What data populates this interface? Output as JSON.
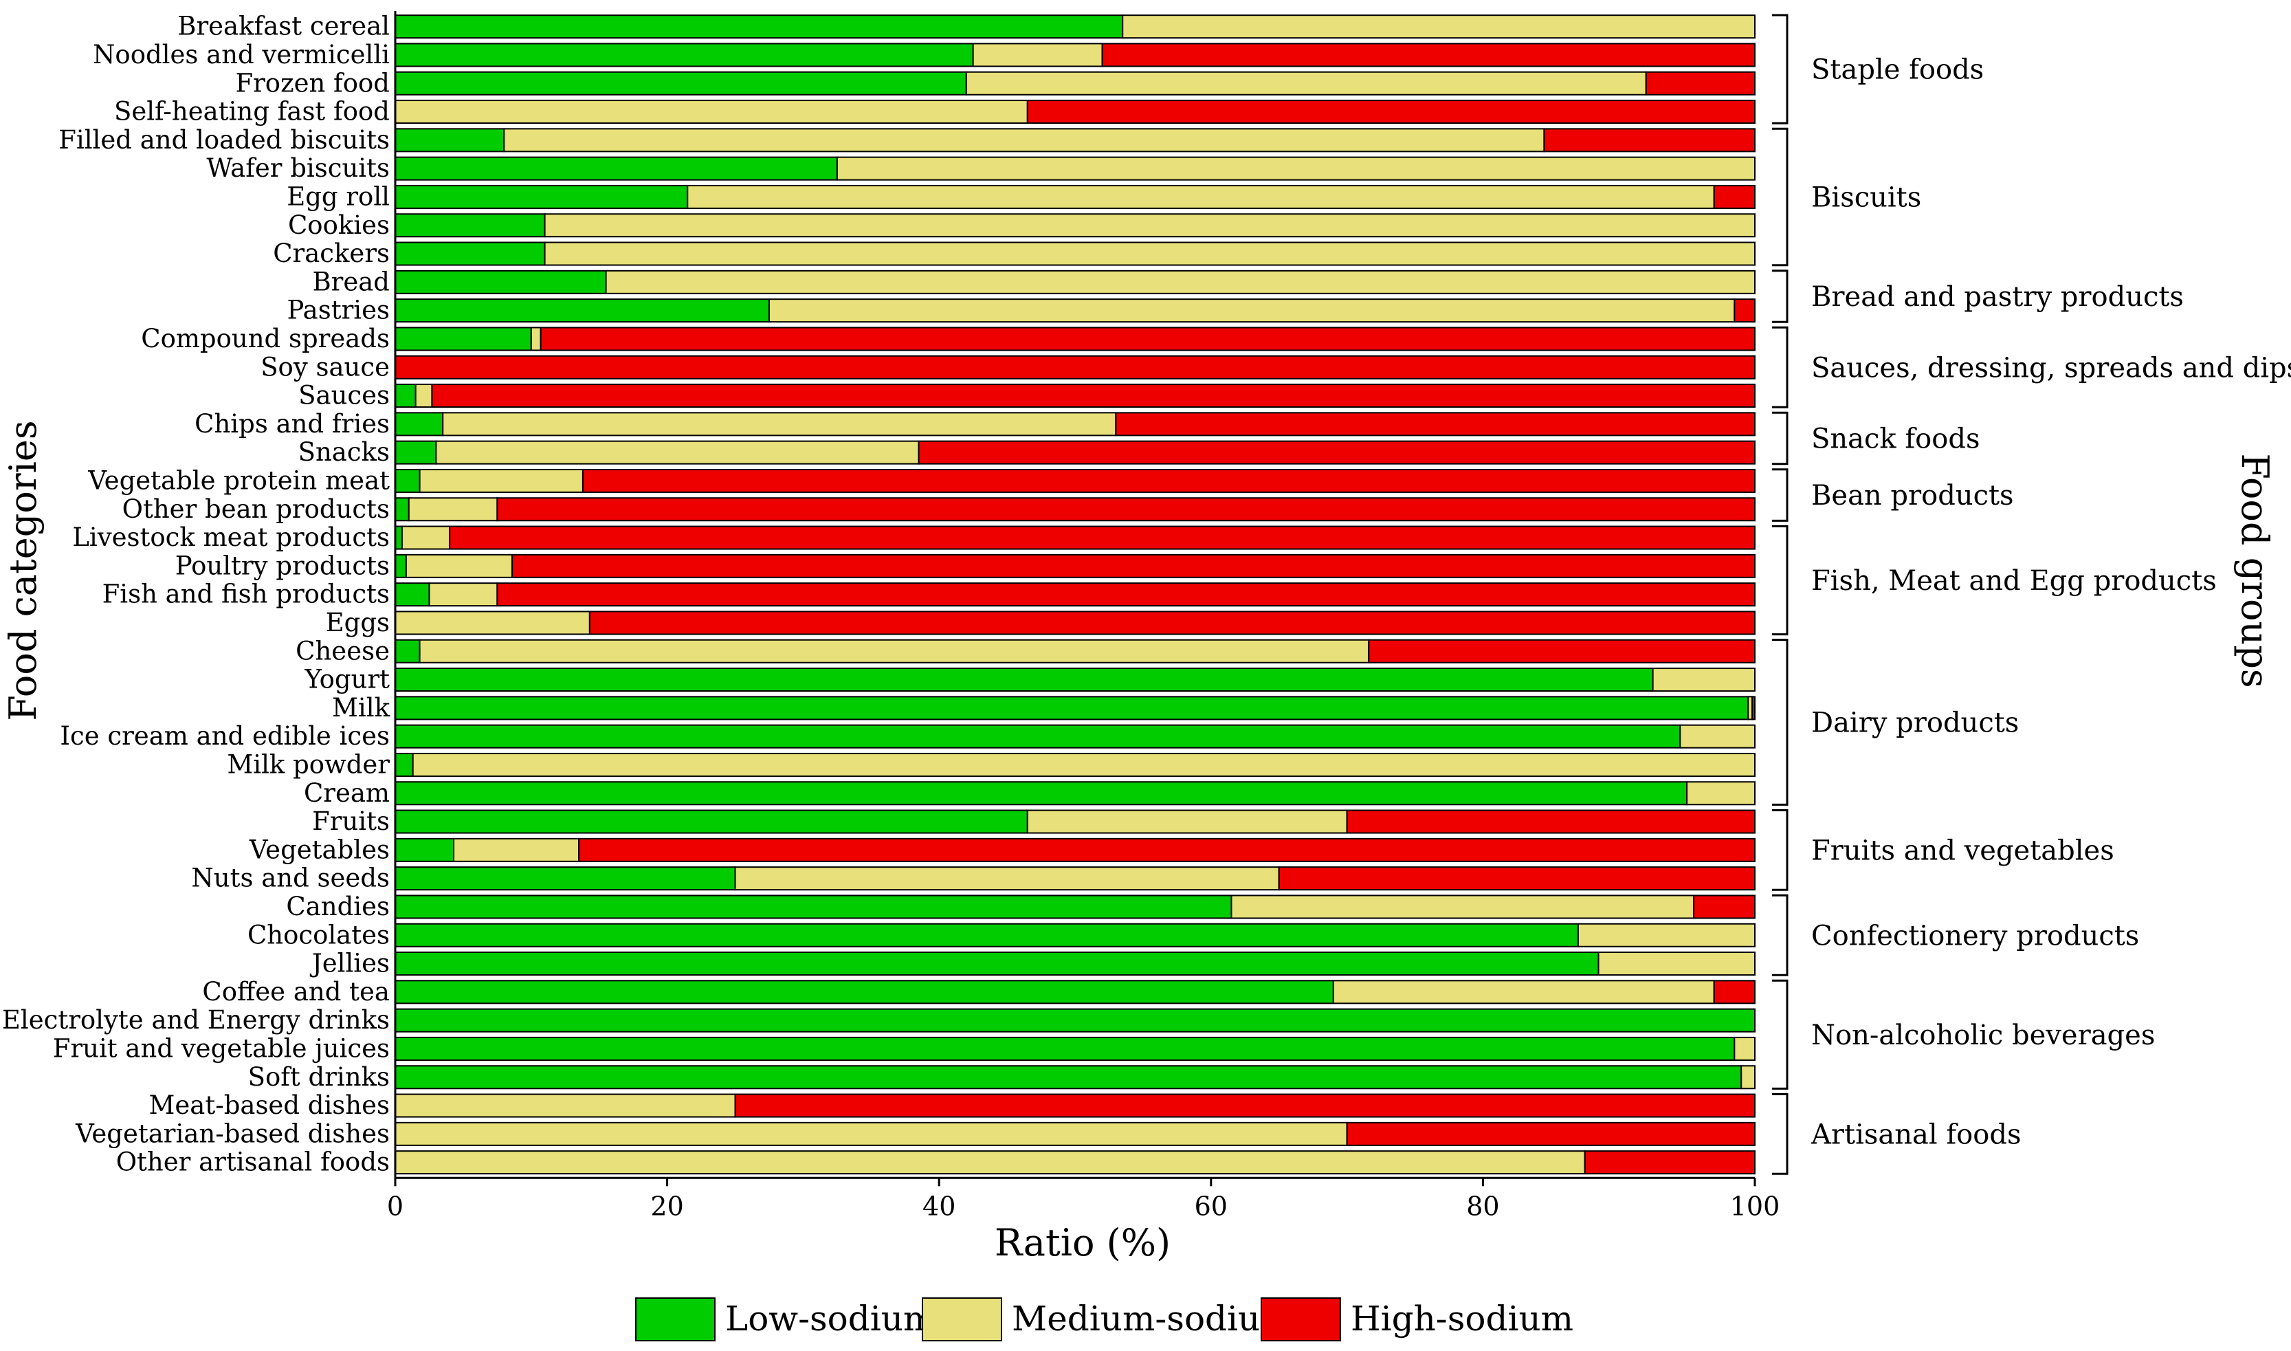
{
  "chart_data": {
    "type": "bar",
    "orientation": "horizontal",
    "stacked": true,
    "xlabel": "Ratio (%)",
    "ylabel": "Food categories",
    "right_label": "Food groups",
    "xlim": [
      0,
      100
    ],
    "xticks": [
      "0",
      "20",
      "40",
      "60",
      "80",
      "100"
    ],
    "grid": false,
    "legend_position": "bottom",
    "categories": [
      "Breakfast cereal",
      "Noodles and vermicelli",
      "Frozen food",
      "Self-heating fast food",
      "Filled and loaded biscuits",
      "Wafer biscuits",
      "Egg roll",
      "Cookies",
      "Crackers",
      "Bread",
      "Pastries",
      "Compound spreads",
      "Soy sauce",
      "Sauces",
      "Chips and fries",
      "Snacks",
      "Vegetable protein meat",
      "Other bean products",
      "Livestock meat products",
      "Poultry products",
      "Fish and fish products",
      "Eggs",
      "Cheese",
      "Yogurt",
      "Milk",
      "Ice cream and edible ices",
      "Milk powder",
      "Cream",
      "Fruits",
      "Vegetables",
      "Nuts and seeds",
      "Candies",
      "Chocolates",
      "Jellies",
      "Coffee and tea",
      "Electrolyte and Energy drinks",
      "Fruit and vegetable juices",
      "Soft drinks",
      "Meat-based dishes",
      "Vegetarian-based dishes",
      "Other artisanal foods"
    ],
    "series": [
      {
        "name": "Low-sodium",
        "color": "#00cc00",
        "values": [
          53.5,
          42.5,
          42,
          0,
          8,
          32.5,
          21.5,
          11,
          11,
          15.5,
          27.5,
          10,
          0,
          1.5,
          3.5,
          3,
          1.8,
          1,
          0.5,
          0.8,
          2.5,
          0,
          1.8,
          92.5,
          99.5,
          94.5,
          1.3,
          95,
          46.5,
          4.3,
          25,
          61.5,
          87,
          88.5,
          69,
          100,
          98.5,
          99,
          0,
          0,
          0
        ]
      },
      {
        "name": "Medium-sodium",
        "color": "#e8e07a",
        "values": [
          46.5,
          9.5,
          50,
          46.5,
          76.5,
          67.5,
          75.5,
          89,
          89,
          84.5,
          71,
          0.7,
          0,
          1.2,
          49.5,
          35.5,
          12,
          6.5,
          3.5,
          7.8,
          5,
          14.3,
          69.8,
          7.5,
          0.3,
          5.5,
          98.7,
          5,
          23.5,
          9.2,
          40,
          34,
          13,
          11.5,
          28,
          0,
          1.5,
          1,
          25,
          70,
          87.5
        ]
      },
      {
        "name": "High-sodium",
        "color": "#ee0000",
        "values": [
          0,
          48,
          8,
          53.5,
          15.5,
          0,
          3,
          0,
          0,
          0,
          1.5,
          89.3,
          100,
          97.3,
          47,
          61.5,
          86.2,
          92.5,
          96,
          91.4,
          92.5,
          85.7,
          28.4,
          0,
          0.2,
          0,
          0,
          0,
          30,
          86.5,
          35,
          4.5,
          0,
          0,
          3,
          0,
          0,
          0,
          75,
          30,
          12.5
        ]
      }
    ],
    "groups": [
      {
        "label": "Staple foods",
        "first": 0,
        "last": 3
      },
      {
        "label": "Biscuits",
        "first": 4,
        "last": 8
      },
      {
        "label": "Bread and pastry products",
        "first": 9,
        "last": 10
      },
      {
        "label": "Sauces, dressing, spreads and  dips",
        "first": 11,
        "last": 13
      },
      {
        "label": "Snack foods",
        "first": 14,
        "last": 15
      },
      {
        "label": "Bean products",
        "first": 16,
        "last": 17
      },
      {
        "label": "Fish, Meat and Egg products",
        "first": 18,
        "last": 21
      },
      {
        "label": "Dairy products",
        "first": 22,
        "last": 27
      },
      {
        "label": "Fruits and vegetables",
        "first": 28,
        "last": 30
      },
      {
        "label": "Confectionery products",
        "first": 31,
        "last": 33
      },
      {
        "label": "Non-alcoholic beverages",
        "first": 34,
        "last": 37
      },
      {
        "label": "Artisanal foods",
        "first": 38,
        "last": 40
      }
    ]
  }
}
